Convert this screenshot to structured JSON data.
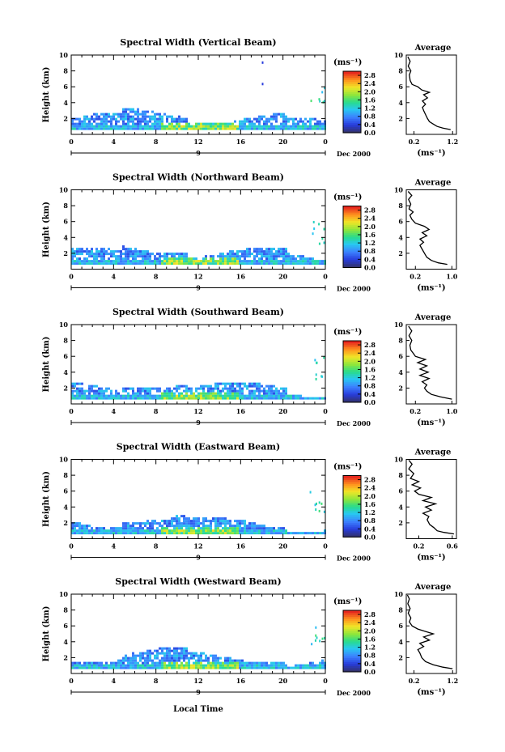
{
  "figure": {
    "x_axis_label": "Local Time",
    "average_title": "Average",
    "date_label": "Dec 2000",
    "day_label": "9",
    "y_axis_label": "Height (km)",
    "unit_label": "(ms⁻¹)"
  },
  "chart_data": [
    {
      "type": "heatmap",
      "title": "Spectral Width (Vertical Beam)",
      "ylabel": "Height (km)",
      "xlabel": "Local Time",
      "x_ticks": [
        "0",
        "4",
        "8",
        "12",
        "16",
        "20",
        "0"
      ],
      "y_ticks": [
        "2",
        "4",
        "6",
        "8",
        "10"
      ],
      "xlim": [
        0,
        24
      ],
      "ylim": [
        0,
        10
      ],
      "colorbar": {
        "label": "(ms⁻¹)",
        "ticks": [
          "2.8",
          "2.4",
          "2.0",
          "1.6",
          "1.2",
          "0.8",
          "0.4",
          "0.0"
        ],
        "range": [
          0,
          3.0
        ]
      },
      "average_profile": {
        "title": "Average",
        "xlabel": "(ms⁻¹)",
        "x_ticks": [
          "0.2",
          "1.2"
        ],
        "xlim": [
          0.0,
          1.3
        ],
        "y_ticks": [
          "2",
          "4",
          "6",
          "8",
          "10"
        ],
        "points": [
          [
            1.15,
            0.6
          ],
          [
            0.95,
            0.8
          ],
          [
            0.8,
            1.0
          ],
          [
            0.7,
            1.3
          ],
          [
            0.6,
            1.6
          ],
          [
            0.55,
            2.0
          ],
          [
            0.5,
            2.5
          ],
          [
            0.45,
            3.0
          ],
          [
            0.42,
            3.4
          ],
          [
            0.5,
            3.8
          ],
          [
            0.42,
            4.2
          ],
          [
            0.55,
            4.6
          ],
          [
            0.45,
            5.0
          ],
          [
            0.6,
            5.3
          ],
          [
            0.4,
            5.6
          ],
          [
            0.3,
            6.0
          ],
          [
            0.15,
            6.3
          ],
          [
            0.1,
            6.8
          ],
          [
            0.08,
            7.5
          ],
          [
            0.12,
            8.0
          ],
          [
            0.05,
            8.6
          ],
          [
            0.1,
            9.2
          ],
          [
            0.04,
            9.8
          ]
        ]
      }
    },
    {
      "type": "heatmap",
      "title": "Spectral Width (Northward Beam)",
      "ylabel": "Height (km)",
      "xlabel": "Local Time",
      "x_ticks": [
        "0",
        "4",
        "8",
        "12",
        "16",
        "20",
        "0"
      ],
      "y_ticks": [
        "2",
        "4",
        "6",
        "8",
        "10"
      ],
      "xlim": [
        0,
        24
      ],
      "ylim": [
        0,
        10
      ],
      "colorbar": {
        "label": "(ms⁻¹)",
        "ticks": [
          "2.8",
          "2.4",
          "2.0",
          "1.6",
          "1.2",
          "0.8",
          "0.4",
          "0.0"
        ],
        "range": [
          0,
          3.0
        ]
      },
      "average_profile": {
        "title": "Average",
        "xlabel": "(ms⁻¹)",
        "x_ticks": [
          "0.2",
          "1.0"
        ],
        "xlim": [
          0.0,
          1.1
        ],
        "y_ticks": [
          "2",
          "4",
          "6",
          "8",
          "10"
        ],
        "points": [
          [
            0.9,
            0.6
          ],
          [
            0.7,
            0.8
          ],
          [
            0.55,
            1.1
          ],
          [
            0.45,
            1.5
          ],
          [
            0.4,
            2.0
          ],
          [
            0.35,
            2.5
          ],
          [
            0.3,
            3.0
          ],
          [
            0.38,
            3.4
          ],
          [
            0.3,
            3.8
          ],
          [
            0.45,
            4.2
          ],
          [
            0.35,
            4.6
          ],
          [
            0.5,
            5.0
          ],
          [
            0.4,
            5.4
          ],
          [
            0.2,
            5.8
          ],
          [
            0.12,
            6.3
          ],
          [
            0.08,
            6.8
          ],
          [
            0.15,
            7.2
          ],
          [
            0.06,
            7.6
          ],
          [
            0.1,
            8.2
          ],
          [
            0.05,
            8.8
          ],
          [
            0.12,
            9.3
          ],
          [
            0.04,
            9.8
          ]
        ]
      }
    },
    {
      "type": "heatmap",
      "title": "Spectral Width (Southward Beam)",
      "ylabel": "Height (km)",
      "xlabel": "Local Time",
      "x_ticks": [
        "0",
        "4",
        "8",
        "12",
        "16",
        "20",
        "0"
      ],
      "y_ticks": [
        "2",
        "4",
        "6",
        "8",
        "10"
      ],
      "xlim": [
        0,
        24
      ],
      "ylim": [
        0,
        10
      ],
      "colorbar": {
        "label": "(ms⁻¹)",
        "ticks": [
          "2.8",
          "2.4",
          "2.0",
          "1.6",
          "1.2",
          "0.8",
          "0.4",
          "0.0"
        ],
        "range": [
          0,
          3.0
        ]
      },
      "average_profile": {
        "title": "Average",
        "xlabel": "(ms⁻¹)",
        "x_ticks": [
          "0.2",
          "1.0"
        ],
        "xlim": [
          0.0,
          1.1
        ],
        "y_ticks": [
          "2",
          "4",
          "6",
          "8",
          "10"
        ],
        "points": [
          [
            1.0,
            0.6
          ],
          [
            0.75,
            0.9
          ],
          [
            0.55,
            1.2
          ],
          [
            0.45,
            1.6
          ],
          [
            0.4,
            2.0
          ],
          [
            0.45,
            2.4
          ],
          [
            0.35,
            2.8
          ],
          [
            0.5,
            3.2
          ],
          [
            0.3,
            3.6
          ],
          [
            0.48,
            4.0
          ],
          [
            0.3,
            4.4
          ],
          [
            0.45,
            4.8
          ],
          [
            0.25,
            5.2
          ],
          [
            0.42,
            5.6
          ],
          [
            0.2,
            6.0
          ],
          [
            0.15,
            6.4
          ],
          [
            0.1,
            6.8
          ],
          [
            0.08,
            7.4
          ],
          [
            0.12,
            8.0
          ],
          [
            0.06,
            8.6
          ],
          [
            0.12,
            9.2
          ],
          [
            0.05,
            9.8
          ]
        ]
      }
    },
    {
      "type": "heatmap",
      "title": "Spectral Width (Eastward Beam)",
      "ylabel": "Height (km)",
      "xlabel": "Local Time",
      "x_ticks": [
        "0",
        "4",
        "8",
        "12",
        "16",
        "20",
        "0"
      ],
      "y_ticks": [
        "2",
        "4",
        "6",
        "8",
        "10"
      ],
      "xlim": [
        0,
        24
      ],
      "ylim": [
        0,
        10
      ],
      "colorbar": {
        "label": "(ms⁻¹)",
        "ticks": [
          "2.8",
          "2.4",
          "2.0",
          "1.6",
          "1.2",
          "0.8",
          "0.4",
          "0.0"
        ],
        "range": [
          0,
          3.0
        ]
      },
      "average_profile": {
        "title": "Average",
        "xlabel": "(ms⁻¹)",
        "x_ticks": [
          "0.2",
          "0.6"
        ],
        "xlim": [
          0.05,
          0.65
        ],
        "y_ticks": [
          "2",
          "4",
          "6",
          "8",
          "10"
        ],
        "points": [
          [
            0.62,
            0.6
          ],
          [
            0.5,
            0.8
          ],
          [
            0.42,
            1.0
          ],
          [
            0.38,
            1.4
          ],
          [
            0.33,
            1.8
          ],
          [
            0.3,
            2.4
          ],
          [
            0.32,
            2.8
          ],
          [
            0.25,
            3.2
          ],
          [
            0.35,
            3.6
          ],
          [
            0.28,
            4.0
          ],
          [
            0.4,
            4.4
          ],
          [
            0.25,
            4.8
          ],
          [
            0.35,
            5.2
          ],
          [
            0.2,
            5.6
          ],
          [
            0.15,
            6.0
          ],
          [
            0.22,
            6.4
          ],
          [
            0.12,
            6.8
          ],
          [
            0.2,
            7.2
          ],
          [
            0.1,
            7.6
          ],
          [
            0.14,
            8.2
          ],
          [
            0.08,
            8.8
          ],
          [
            0.12,
            9.4
          ],
          [
            0.08,
            9.9
          ]
        ]
      }
    },
    {
      "type": "heatmap",
      "title": "Spectral Width (Westward Beam)",
      "ylabel": "Height (km)",
      "xlabel": "Local Time",
      "x_ticks": [
        "0",
        "4",
        "8",
        "12",
        "16",
        "20",
        "0"
      ],
      "y_ticks": [
        "2",
        "4",
        "6",
        "8",
        "10"
      ],
      "xlim": [
        0,
        24
      ],
      "ylim": [
        0,
        10
      ],
      "colorbar": {
        "label": "(ms⁻¹)",
        "ticks": [
          "2.8",
          "2.4",
          "2.0",
          "1.6",
          "1.2",
          "0.8",
          "0.4",
          "0.0"
        ],
        "range": [
          0,
          3.0
        ]
      },
      "average_profile": {
        "title": "Average",
        "xlabel": "(ms⁻¹)",
        "x_ticks": [
          "0.2",
          "1.2"
        ],
        "xlim": [
          0.0,
          1.3
        ],
        "y_ticks": [
          "2",
          "4",
          "6",
          "8",
          "10"
        ],
        "points": [
          [
            1.2,
            0.6
          ],
          [
            0.95,
            0.8
          ],
          [
            0.7,
            1.1
          ],
          [
            0.5,
            1.5
          ],
          [
            0.4,
            2.0
          ],
          [
            0.35,
            2.6
          ],
          [
            0.3,
            3.0
          ],
          [
            0.45,
            3.4
          ],
          [
            0.35,
            3.8
          ],
          [
            0.6,
            4.2
          ],
          [
            0.45,
            4.6
          ],
          [
            0.7,
            5.0
          ],
          [
            0.5,
            5.3
          ],
          [
            0.3,
            5.6
          ],
          [
            0.15,
            6.0
          ],
          [
            0.08,
            6.5
          ],
          [
            0.12,
            7.0
          ],
          [
            0.05,
            7.6
          ],
          [
            0.1,
            8.2
          ],
          [
            0.04,
            8.8
          ],
          [
            0.08,
            9.4
          ],
          [
            0.03,
            9.9
          ]
        ]
      }
    }
  ]
}
